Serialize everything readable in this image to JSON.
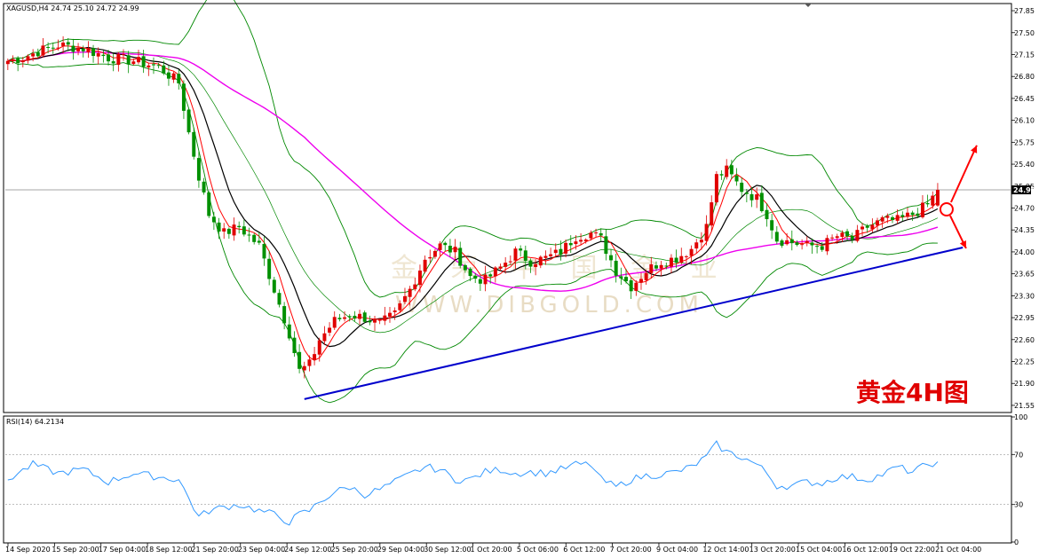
{
  "header": {
    "symbol_line": "XAGUSD,H4  24.74 25.10 24.72 24.99",
    "rsi_label": "RSI(14) 64.2134"
  },
  "overlay": {
    "title": "黄金4H图",
    "watermark_cn": "金 荣 中 国 金 业",
    "watermark_en": "WWW.DIBGOLD.COM"
  },
  "colors": {
    "bull": "#e00000",
    "bear": "#009000",
    "ma_fast": "#ff0000",
    "ma_mid": "#000000",
    "ma_slow": "#ee00ee",
    "bollinger": "#008800",
    "trendline": "#0000cc",
    "rsi": "#3399ff",
    "arrow": "#ff0000",
    "badge": "#000000"
  },
  "chart_data": [
    {
      "type": "candlestick",
      "symbol": "XAGUSD",
      "timeframe": "H4",
      "ohlc_header": {
        "open": 24.74,
        "high": 25.1,
        "low": 24.72,
        "close": 24.99
      },
      "current_price": "24.99",
      "ylim": [
        21.45,
        27.95
      ],
      "y_ticks": [
        "27.85",
        "27.50",
        "27.15",
        "26.80",
        "26.45",
        "26.10",
        "25.75",
        "25.40",
        "25.05",
        "24.70",
        "24.35",
        "24.00",
        "23.65",
        "23.30",
        "22.95",
        "22.60",
        "22.25",
        "21.90",
        "21.55"
      ],
      "x_ticks": [
        "14 Sep 2020",
        "15 Sep 20:00",
        "17 Sep 04:00",
        "18 Sep 12:00",
        "21 Sep 20:00",
        "23 Sep 04:00",
        "24 Sep 12:00",
        "25 Sep 20:00",
        "29 Sep 04:00",
        "30 Sep 12:00",
        "1 Oct 20:00",
        "5 Oct 06:00",
        "6 Oct 12:00",
        "7 Oct 20:00",
        "9 Oct 04:00",
        "12 Oct 14:00",
        "13 Oct 20:00",
        "15 Oct 04:00",
        "16 Oct 12:00",
        "19 Oct 22:00",
        "21 Oct 04:00"
      ],
      "price_anchors": [
        [
          0,
          27.05
        ],
        [
          3,
          27.1
        ],
        [
          6,
          27.2
        ],
        [
          10,
          27.3
        ],
        [
          15,
          27.25
        ],
        [
          20,
          27.1
        ],
        [
          25,
          27.05
        ],
        [
          30,
          26.95
        ],
        [
          34,
          26.7
        ],
        [
          36,
          25.9
        ],
        [
          38,
          25.2
        ],
        [
          40,
          24.6
        ],
        [
          43,
          24.3
        ],
        [
          46,
          24.4
        ],
        [
          50,
          24.1
        ],
        [
          53,
          23.4
        ],
        [
          56,
          22.7
        ],
        [
          58,
          22.1
        ],
        [
          60,
          22.2
        ],
        [
          62,
          22.6
        ],
        [
          65,
          22.9
        ],
        [
          68,
          23.0
        ],
        [
          71,
          22.95
        ],
        [
          74,
          22.85
        ],
        [
          77,
          23.0
        ],
        [
          80,
          23.4
        ],
        [
          83,
          23.9
        ],
        [
          86,
          24.1
        ],
        [
          89,
          24.0
        ],
        [
          92,
          23.6
        ],
        [
          95,
          23.55
        ],
        [
          98,
          23.75
        ],
        [
          101,
          24.0
        ],
        [
          104,
          23.85
        ],
        [
          107,
          23.9
        ],
        [
          110,
          24.0
        ],
        [
          113,
          24.25
        ],
        [
          116,
          24.3
        ],
        [
          118,
          24.2
        ],
        [
          121,
          23.7
        ],
        [
          124,
          23.45
        ],
        [
          127,
          23.7
        ],
        [
          130,
          23.85
        ],
        [
          133,
          23.9
        ],
        [
          136,
          24.05
        ],
        [
          139,
          24.4
        ],
        [
          141,
          25.2
        ],
        [
          143,
          25.3
        ],
        [
          146,
          25.0
        ],
        [
          149,
          24.85
        ],
        [
          151,
          24.6
        ],
        [
          153,
          24.2
        ],
        [
          156,
          24.15
        ],
        [
          159,
          24.1
        ],
        [
          162,
          24.1
        ],
        [
          165,
          24.25
        ],
        [
          168,
          24.2
        ],
        [
          171,
          24.4
        ],
        [
          174,
          24.5
        ],
        [
          177,
          24.5
        ],
        [
          180,
          24.6
        ],
        [
          183,
          24.75
        ],
        [
          185,
          24.99
        ]
      ],
      "trendline": {
        "from": {
          "bar": 59,
          "price": 21.65
        },
        "to": {
          "bar": 190,
          "price": 24.07
        }
      },
      "arrow_up_target": 25.7,
      "arrow_down_target": 24.07
    },
    {
      "type": "line",
      "name": "RSI(14)",
      "value": 64.2134,
      "ylim": [
        0,
        100
      ],
      "y_ticks": [
        "100",
        "70",
        "30",
        "0"
      ],
      "anchors": [
        [
          0,
          50
        ],
        [
          5,
          62
        ],
        [
          10,
          55
        ],
        [
          15,
          58
        ],
        [
          20,
          48
        ],
        [
          25,
          55
        ],
        [
          30,
          52
        ],
        [
          34,
          50
        ],
        [
          36,
          35
        ],
        [
          38,
          20
        ],
        [
          40,
          25
        ],
        [
          43,
          28
        ],
        [
          46,
          30
        ],
        [
          50,
          25
        ],
        [
          53,
          22
        ],
        [
          56,
          16
        ],
        [
          58,
          22
        ],
        [
          60,
          25
        ],
        [
          62,
          32
        ],
        [
          65,
          40
        ],
        [
          68,
          44
        ],
        [
          71,
          38
        ],
        [
          74,
          42
        ],
        [
          77,
          48
        ],
        [
          80,
          54
        ],
        [
          83,
          60
        ],
        [
          86,
          58
        ],
        [
          89,
          50
        ],
        [
          92,
          50
        ],
        [
          95,
          56
        ],
        [
          98,
          58
        ],
        [
          101,
          55
        ],
        [
          104,
          56
        ],
        [
          107,
          55
        ],
        [
          110,
          58
        ],
        [
          113,
          62
        ],
        [
          116,
          62
        ],
        [
          118,
          50
        ],
        [
          121,
          44
        ],
        [
          124,
          50
        ],
        [
          127,
          53
        ],
        [
          130,
          54
        ],
        [
          133,
          56
        ],
        [
          136,
          60
        ],
        [
          139,
          68
        ],
        [
          141,
          78
        ],
        [
          143,
          72
        ],
        [
          146,
          68
        ],
        [
          149,
          62
        ],
        [
          151,
          55
        ],
        [
          153,
          45
        ],
        [
          156,
          45
        ],
        [
          159,
          48
        ],
        [
          162,
          47
        ],
        [
          165,
          52
        ],
        [
          168,
          52
        ],
        [
          171,
          50
        ],
        [
          174,
          54
        ],
        [
          177,
          60
        ],
        [
          180,
          56
        ],
        [
          183,
          62
        ],
        [
          185,
          64.2
        ]
      ]
    }
  ]
}
